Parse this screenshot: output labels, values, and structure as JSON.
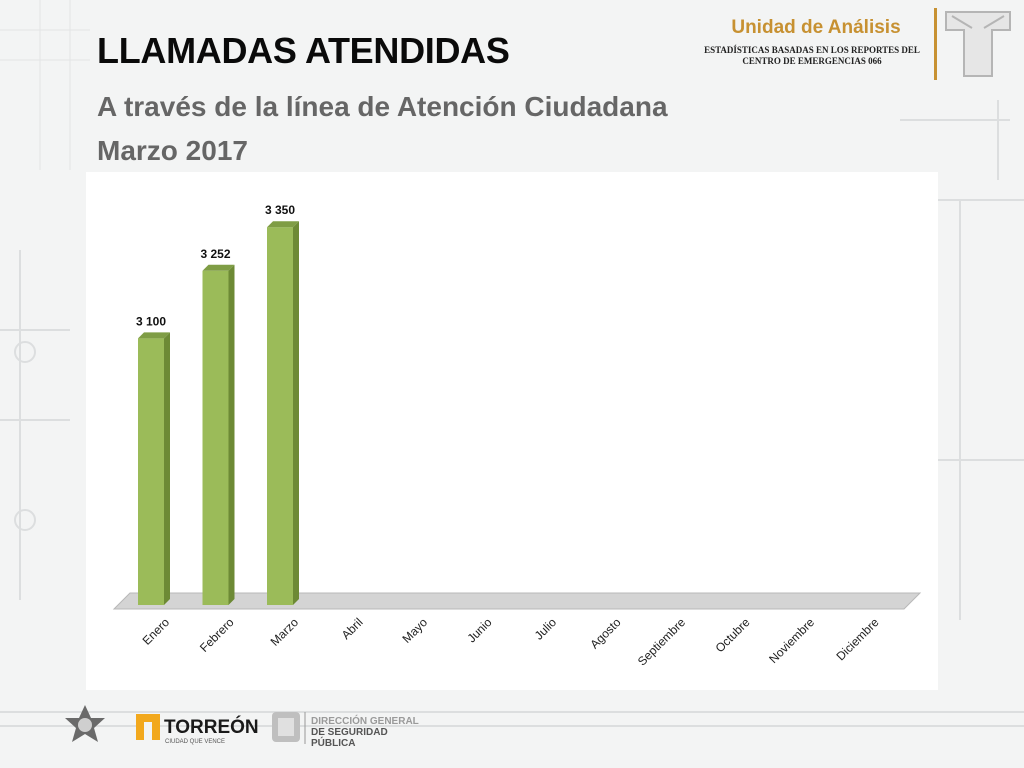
{
  "header": {
    "title": "LLAMADAS ATENDIDAS",
    "subtitle_line1": "A través de la línea de Atención Ciudadana",
    "subtitle_line2": "Marzo 2017",
    "unit_name": "Unidad de Análisis",
    "unit_sub_line1": "ESTADÍSTICAS BASADAS EN LOS REPORTES DEL",
    "unit_sub_line2": "CENTRO DE EMERGENCIAS 066"
  },
  "footer": {
    "torreon_name": "TORREÓN",
    "torreon_tagline": "CIUDAD QUE VENCE",
    "dgsp_line1": "DIRECCIÓN GENERAL",
    "dgsp_line2": "DE SEGURIDAD",
    "dgsp_line3": "PÚBLICA"
  },
  "colors": {
    "bar_front": "#9bbb59",
    "bar_side": "#6d8a35",
    "bar_top": "#7f9d45",
    "floor": "#d4d4d4",
    "accent_gold": "#c79132"
  },
  "chart_data": {
    "type": "bar",
    "categories": [
      "Enero",
      "Febrero",
      "Marzo",
      "Abril",
      "Mayo",
      "Junio",
      "Julio",
      "Agosto",
      "Septiembre",
      "Octubre",
      "Noviembre",
      "Diciembre"
    ],
    "values": [
      3100,
      3252,
      3350,
      null,
      null,
      null,
      null,
      null,
      null,
      null,
      null,
      null
    ],
    "value_labels": [
      "3 100",
      "3 252",
      "3 350",
      "",
      "",
      "",
      "",
      "",
      "",
      "",
      "",
      ""
    ],
    "ylim": [
      2500,
      3400
    ],
    "grid": false,
    "legend": false
  }
}
